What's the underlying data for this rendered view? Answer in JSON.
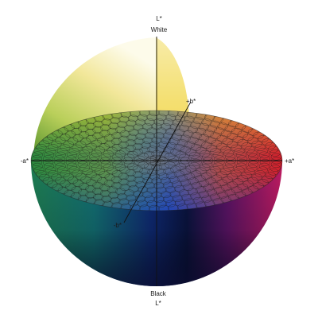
{
  "diagram": {
    "labels": {
      "l_top": "L*",
      "white": "White",
      "black": "Black",
      "l_bottom": "L*",
      "plus_a": "+a*",
      "minus_a": "-a*",
      "plus_b": "+b*",
      "minus_b": "-b*"
    },
    "colors": {
      "background": "#ffffff",
      "green": "#1f7a4a",
      "teal": "#136f72",
      "blue": "#0e3d8c",
      "navy": "#0a1540",
      "purple": "#5a1466",
      "magenta": "#b01a6c",
      "red": "#c8202b",
      "orange": "#e86a1e",
      "yellow": "#f2d84a",
      "pale_yellow": "#f7f1c4",
      "white": "#fdfcf2",
      "axis": "#111111",
      "cell_stroke": "#1a1a1a"
    }
  }
}
